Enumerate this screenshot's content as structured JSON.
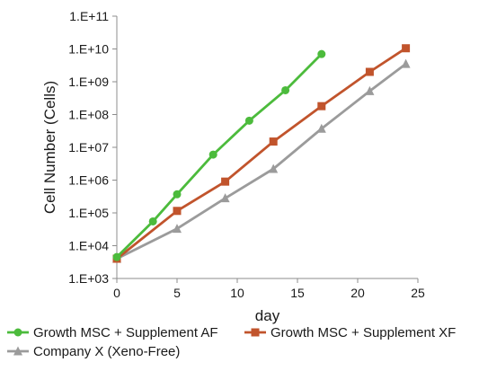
{
  "chart_data": {
    "type": "line",
    "title": "",
    "xlabel": "day",
    "ylabel": "Cell Number (Cells)",
    "xlim": [
      0,
      25
    ],
    "ylim": [
      1000,
      100000000000
    ],
    "yscale": "log",
    "grid": false,
    "legend_position": "bottom",
    "x_ticks": [
      "0",
      "5",
      "10",
      "15",
      "20",
      "25"
    ],
    "x_tick_values": [
      0,
      5,
      10,
      15,
      20,
      25
    ],
    "y_ticks": [
      "1.E+03",
      "1.E+04",
      "1.E+05",
      "1.E+06",
      "1.E+07",
      "1.E+08",
      "1.E+09",
      "1.E+10",
      "1.E+11"
    ],
    "y_tick_values": [
      1000,
      10000,
      100000,
      1000000,
      10000000,
      100000000,
      1000000000,
      10000000000,
      100000000000
    ],
    "series": [
      {
        "name": "Growth MSC + Supplement AF",
        "color": "#4cbb3c",
        "marker": "circle",
        "x": [
          0,
          3,
          5,
          8,
          11,
          14,
          17
        ],
        "y": [
          4500,
          55000,
          370000,
          6000000,
          65000000,
          550000000,
          7000000000
        ]
      },
      {
        "name": "Growth MSC + Supplement XF",
        "color": "#c1542c",
        "marker": "square",
        "x": [
          0,
          5,
          9,
          13,
          17,
          21,
          24
        ],
        "y": [
          4000,
          115000,
          900000,
          15000000,
          180000000,
          2000000000,
          10500000000
        ]
      },
      {
        "name": "Company X (Xeno-Free)",
        "color": "#9b9b9b",
        "marker": "triangle",
        "x": [
          0,
          5,
          9,
          13,
          17,
          21,
          24
        ],
        "y": [
          4000,
          33000,
          280000,
          2200000,
          37000000,
          520000000,
          3500000000
        ]
      }
    ]
  }
}
